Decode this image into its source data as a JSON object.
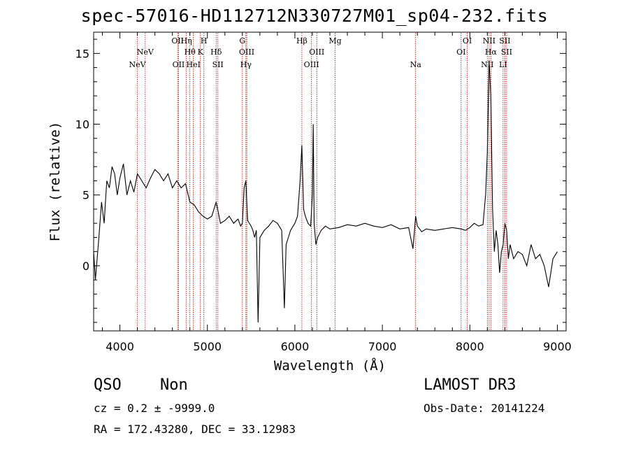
{
  "chart_data": {
    "type": "line",
    "title": "spec-57016-HD112712N330727M01_sp04-232.fits",
    "xlabel": "Wavelength (Å)",
    "ylabel": "Flux (relative)",
    "xlim": [
      3700,
      9100
    ],
    "ylim": [
      -4.6,
      16.5
    ],
    "xticks": [
      4000,
      5000,
      6000,
      7000,
      8000,
      9000
    ],
    "yticks": [
      0,
      5,
      10,
      15
    ],
    "grid": false,
    "line_markers": [
      {
        "label": "NeV",
        "x": 4200,
        "row": 2
      },
      {
        "label": "NeV",
        "x": 4290,
        "row": 1
      },
      {
        "label": "OII",
        "x": 4660,
        "row": 0
      },
      {
        "label": "OII",
        "x": 4670,
        "row": 2
      },
      {
        "label": "Hη",
        "x": 4760,
        "row": 0
      },
      {
        "label": "Hθ",
        "x": 4800,
        "row": 1
      },
      {
        "label": "HeI",
        "x": 4840,
        "row": 2
      },
      {
        "label": "H",
        "x": 4960,
        "row": 0
      },
      {
        "label": "K",
        "x": 4920,
        "row": 1
      },
      {
        "label": "Hδ",
        "x": 5100,
        "row": 1
      },
      {
        "label": "SII",
        "x": 5120,
        "row": 2
      },
      {
        "label": "G",
        "x": 5400,
        "row": 0
      },
      {
        "label": "OIII",
        "x": 5450,
        "row": 1
      },
      {
        "label": "Hγ",
        "x": 5440,
        "row": 2
      },
      {
        "label": "Hβ",
        "x": 6080,
        "row": 0
      },
      {
        "label": "OIII",
        "x": 6250,
        "row": 1
      },
      {
        "label": "OIII",
        "x": 6190,
        "row": 2
      },
      {
        "label": "Mg",
        "x": 6460,
        "row": 0
      },
      {
        "label": "Na",
        "x": 7380,
        "row": 2
      },
      {
        "label": "OI",
        "x": 7970,
        "row": 0
      },
      {
        "label": "OI",
        "x": 7900,
        "row": 1
      },
      {
        "label": "NII",
        "x": 8220,
        "row": 0
      },
      {
        "label": "Hα",
        "x": 8240,
        "row": 1
      },
      {
        "label": "NII",
        "x": 8200,
        "row": 2
      },
      {
        "label": "SII",
        "x": 8400,
        "row": 0
      },
      {
        "label": "SII",
        "x": 8420,
        "row": 1
      },
      {
        "label": "LI",
        "x": 8380,
        "row": 2
      }
    ],
    "series": [
      {
        "name": "spectrum",
        "x": [
          3700,
          3720,
          3740,
          3760,
          3790,
          3820,
          3850,
          3880,
          3910,
          3940,
          3970,
          4000,
          4040,
          4080,
          4120,
          4160,
          4200,
          4250,
          4300,
          4350,
          4400,
          4450,
          4500,
          4550,
          4600,
          4650,
          4700,
          4750,
          4800,
          4850,
          4900,
          4950,
          5000,
          5050,
          5100,
          5150,
          5200,
          5250,
          5300,
          5350,
          5380,
          5400,
          5420,
          5440,
          5460,
          5500,
          5520,
          5540,
          5560,
          5580,
          5600,
          5650,
          5700,
          5750,
          5800,
          5850,
          5880,
          5900,
          5950,
          6000,
          6030,
          6060,
          6080,
          6100,
          6120,
          6150,
          6180,
          6200,
          6210,
          6220,
          6240,
          6260,
          6300,
          6350,
          6400,
          6500,
          6600,
          6700,
          6800,
          6900,
          7000,
          7100,
          7200,
          7300,
          7350,
          7380,
          7400,
          7450,
          7500,
          7600,
          7700,
          7800,
          7900,
          7950,
          8000,
          8050,
          8100,
          8150,
          8180,
          8200,
          8220,
          8240,
          8260,
          8280,
          8300,
          8320,
          8340,
          8360,
          8380,
          8400,
          8420,
          8440,
          8460,
          8480,
          8500,
          8550,
          8600,
          8650,
          8700,
          8750,
          8800,
          8850,
          8900,
          8950,
          9000
        ],
        "values": [
          1.0,
          -1.0,
          0.5,
          2.0,
          4.5,
          3.0,
          6.0,
          5.5,
          7.0,
          6.5,
          5.0,
          6.2,
          7.2,
          5.0,
          6.0,
          5.2,
          6.5,
          6.0,
          5.5,
          6.2,
          6.8,
          6.5,
          6.0,
          6.5,
          5.5,
          6.0,
          5.5,
          5.8,
          4.5,
          4.3,
          3.8,
          3.5,
          3.3,
          3.5,
          4.5,
          3.0,
          3.2,
          3.5,
          3.0,
          3.3,
          2.8,
          3.0,
          5.5,
          6.0,
          3.2,
          2.8,
          2.5,
          2.0,
          2.5,
          -4.0,
          2.0,
          2.5,
          2.8,
          3.2,
          3.0,
          2.5,
          -3.0,
          1.5,
          2.5,
          3.0,
          3.5,
          6.0,
          8.5,
          4.0,
          3.5,
          3.0,
          2.8,
          5.0,
          10.0,
          3.0,
          1.5,
          2.0,
          2.5,
          2.8,
          2.6,
          2.7,
          2.9,
          2.8,
          3.0,
          2.8,
          2.7,
          2.9,
          2.6,
          2.7,
          1.2,
          3.5,
          2.8,
          2.4,
          2.6,
          2.5,
          2.6,
          2.7,
          2.6,
          2.5,
          2.7,
          3.0,
          2.8,
          2.9,
          5.0,
          8.0,
          14.5,
          12.0,
          4.0,
          1.0,
          2.5,
          1.5,
          -0.5,
          1.0,
          1.5,
          3.0,
          2.5,
          0.5,
          1.5,
          1.0,
          0.5,
          1.0,
          0.8,
          0.0,
          1.5,
          0.5,
          0.8,
          0.0,
          -1.5,
          0.5,
          1.0
        ]
      }
    ]
  },
  "footer": {
    "class_label": "QSO",
    "subclass_label": "Non",
    "cz_text": "cz = 0.2 ± -9999.0",
    "coords_text": "RA = 172.43280, DEC =  33.12983",
    "survey_label": "LAMOST DR3",
    "obs_date_text": "Obs-Date: 20141224"
  }
}
